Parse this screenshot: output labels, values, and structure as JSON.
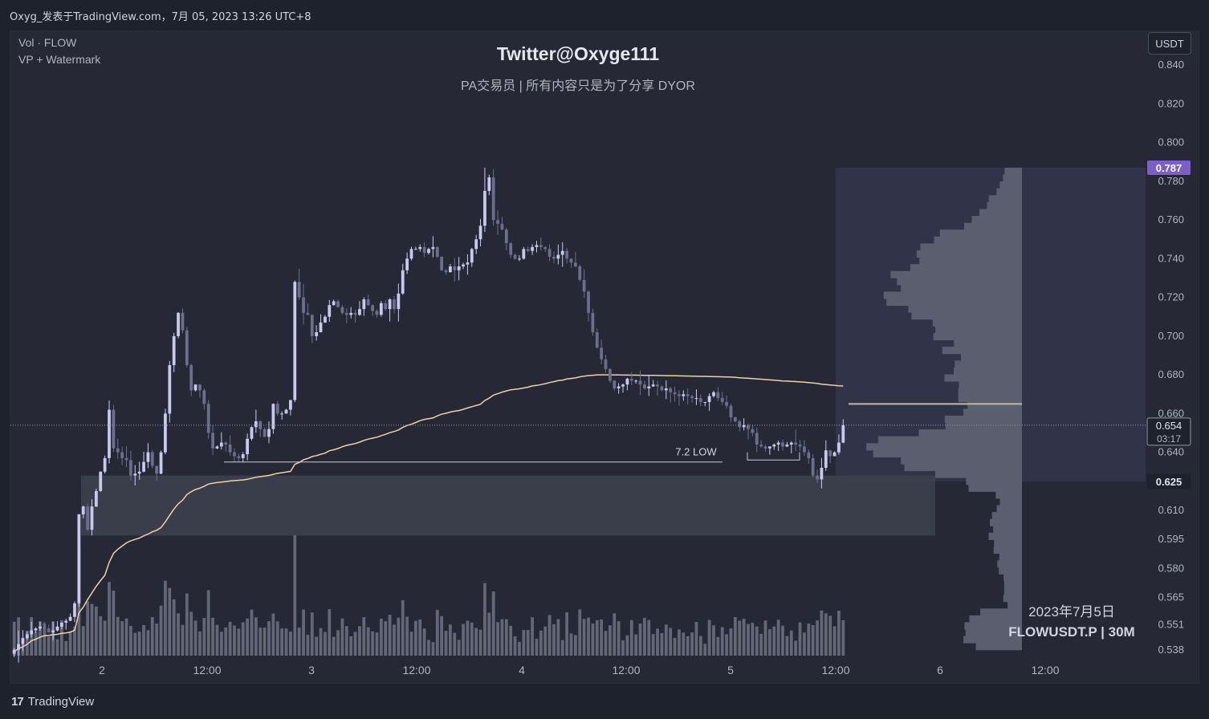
{
  "header": {
    "title": "Oxyg_发表于TradingView.com，7月 05, 2023 13:26 UTC+8"
  },
  "legend": {
    "line1": "Vol · FLOW",
    "line2": "VP + Watermark"
  },
  "watermark": {
    "title": "Twitter@Oxyge111",
    "subtitle": "PA交易员  |  所有内容只是为了分享 DYOR",
    "date": "2023年7月5日",
    "symbol": "FLOWUSDT.P | 30M"
  },
  "toolbar": {
    "currency": "USDT"
  },
  "footer": {
    "brand": "TradingView"
  },
  "colors": {
    "background": "#262935",
    "candle_up": "#c9c9f0",
    "candle_down": "#6b6e8c",
    "volume": "#6b6e80",
    "vwap": "#f0d0a8",
    "profile": "#5a5e6e",
    "poc": "#c8b8a0",
    "zone": "#3e414e",
    "high_label": "#7b5fc7"
  },
  "chart_data": {
    "type": "candlestick",
    "symbol": "FLOWUSDT.P",
    "interval": "30M",
    "ylim": [
      0.535,
      0.845
    ],
    "y_ticks": [
      0.84,
      0.82,
      0.8,
      0.78,
      0.76,
      0.74,
      0.72,
      0.7,
      0.68,
      0.66,
      0.64,
      0.61,
      0.595,
      0.58,
      0.565,
      0.551,
      0.538
    ],
    "x_tick_labels": [
      "2",
      "12:00",
      "3",
      "12:00",
      "4",
      "12:00",
      "5",
      "12:00",
      "6",
      "12:00"
    ],
    "price_labels": {
      "session_high": "0.787",
      "last_price": "0.654",
      "countdown": "03:17",
      "session_low": "0.625"
    },
    "annotations": {
      "low_label": "7.2 LOW",
      "low_level": 0.635
    },
    "support_zone": [
      0.597,
      0.628
    ],
    "poc_price": 0.665,
    "closes": [
      0.538,
      0.541,
      0.544,
      0.546,
      0.548,
      0.549,
      0.55,
      0.549,
      0.547,
      0.548,
      0.55,
      0.552,
      0.553,
      0.555,
      0.562,
      0.608,
      0.612,
      0.6,
      0.612,
      0.62,
      0.63,
      0.637,
      0.662,
      0.642,
      0.64,
      0.637,
      0.636,
      0.628,
      0.629,
      0.63,
      0.635,
      0.64,
      0.633,
      0.629,
      0.64,
      0.66,
      0.685,
      0.7,
      0.712,
      0.703,
      0.685,
      0.672,
      0.675,
      0.672,
      0.665,
      0.65,
      0.642,
      0.643,
      0.645,
      0.644,
      0.64,
      0.638,
      0.637,
      0.639,
      0.647,
      0.653,
      0.656,
      0.652,
      0.648,
      0.652,
      0.665,
      0.66,
      0.66,
      0.662,
      0.667,
      0.728,
      0.72,
      0.712,
      0.711,
      0.7,
      0.702,
      0.707,
      0.71,
      0.716,
      0.718,
      0.715,
      0.712,
      0.711,
      0.712,
      0.711,
      0.714,
      0.719,
      0.716,
      0.713,
      0.711,
      0.717,
      0.714,
      0.719,
      0.714,
      0.722,
      0.734,
      0.74,
      0.745,
      0.745,
      0.746,
      0.743,
      0.745,
      0.746,
      0.741,
      0.734,
      0.733,
      0.736,
      0.734,
      0.736,
      0.737,
      0.738,
      0.745,
      0.75,
      0.757,
      0.775,
      0.782,
      0.76,
      0.758,
      0.755,
      0.748,
      0.742,
      0.74,
      0.74,
      0.745,
      0.744,
      0.746,
      0.747,
      0.746,
      0.745,
      0.741,
      0.74,
      0.742,
      0.744,
      0.74,
      0.738,
      0.736,
      0.729,
      0.723,
      0.712,
      0.702,
      0.694,
      0.688,
      0.683,
      0.677,
      0.673,
      0.674,
      0.675,
      0.678,
      0.677,
      0.677,
      0.675,
      0.673,
      0.674,
      0.675,
      0.674,
      0.672,
      0.673,
      0.671,
      0.67,
      0.669,
      0.67,
      0.669,
      0.668,
      0.668,
      0.666,
      0.666,
      0.669,
      0.671,
      0.668,
      0.666,
      0.664,
      0.658,
      0.656,
      0.653,
      0.654,
      0.652,
      0.65,
      0.644,
      0.643,
      0.642,
      0.643,
      0.644,
      0.645,
      0.643,
      0.644,
      0.645,
      0.644,
      0.643,
      0.64,
      0.637,
      0.628,
      0.626,
      0.632,
      0.641,
      0.638,
      0.64,
      0.645,
      0.654
    ]
  }
}
